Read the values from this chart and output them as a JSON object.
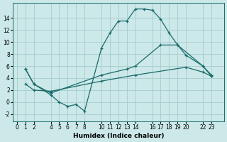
{
  "xlabel": "Humidex (Indice chaleur)",
  "bg_color": "#cce8e8",
  "grid_color": "#aad0d0",
  "line_color": "#1a6b6b",
  "xlim": [
    -0.5,
    24.5
  ],
  "ylim": [
    -3.2,
    16.5
  ],
  "yticks": [
    -2,
    0,
    2,
    4,
    6,
    8,
    10,
    12,
    14
  ],
  "xticks": [
    0,
    1,
    2,
    4,
    5,
    6,
    7,
    8,
    10,
    11,
    12,
    13,
    14,
    16,
    17,
    18,
    19,
    20,
    22,
    23
  ],
  "line1_x": [
    1,
    2,
    4,
    5,
    6,
    7,
    8,
    10,
    11,
    12,
    13,
    14,
    15,
    16,
    17,
    18,
    19,
    22,
    23
  ],
  "line1_y": [
    5.5,
    3.0,
    1.2,
    0.0,
    -0.7,
    -0.4,
    -1.5,
    9.0,
    11.5,
    13.5,
    13.5,
    15.5,
    15.5,
    15.3,
    13.8,
    11.5,
    9.5,
    6.0,
    4.3
  ],
  "line2_x": [
    1,
    2,
    4,
    10,
    13,
    14,
    17,
    19,
    20,
    22,
    23
  ],
  "line2_y": [
    5.5,
    3.0,
    1.5,
    4.5,
    5.5,
    6.0,
    9.5,
    9.5,
    7.8,
    6.0,
    4.5
  ],
  "line3_x": [
    1,
    2,
    4,
    10,
    14,
    20,
    22,
    23
  ],
  "line3_y": [
    3.0,
    2.0,
    1.8,
    3.5,
    4.5,
    5.8,
    5.0,
    4.3
  ],
  "marker": "+",
  "markersize": 3,
  "linewidth": 0.9,
  "xlabel_fontsize": 6.5,
  "tick_fontsize": 5.5
}
